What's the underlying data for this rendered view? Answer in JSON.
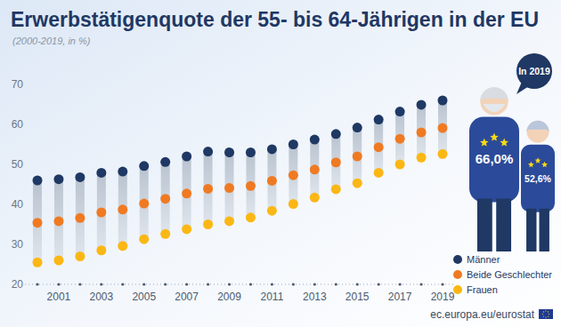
{
  "chart_data": {
    "type": "dumbbell",
    "title": "Erwerbstätigenquote der 55- bis 64-Jährigen in der EU",
    "subtitle": "(2000-2019, in %)",
    "source": "ec.europa.eu/eurostat",
    "categories": [
      null,
      2001,
      null,
      2003,
      null,
      2005,
      null,
      2007,
      null,
      2009,
      null,
      2011,
      null,
      2013,
      null,
      2015,
      null,
      2017,
      null,
      2019
    ],
    "series": [
      {
        "name": "Männer",
        "color": "#1f3864",
        "marker": "circle",
        "values": [
          46.0,
          46.3,
          46.8,
          47.9,
          48.2,
          49.6,
          50.6,
          52.0,
          53.2,
          53.0,
          53.0,
          53.8,
          55.0,
          56.2,
          57.6,
          59.2,
          61.2,
          63.2,
          64.9,
          66.0
        ]
      },
      {
        "name": "Beide Geschlechter",
        "color": "#f07a22",
        "marker": "circle",
        "values": [
          35.4,
          35.8,
          36.6,
          38.0,
          38.7,
          40.2,
          41.4,
          42.7,
          43.9,
          44.1,
          44.6,
          45.9,
          47.3,
          48.7,
          50.5,
          52.0,
          54.3,
          56.4,
          58.0,
          59.1
        ]
      },
      {
        "name": "Frauen",
        "color": "#fbb714",
        "marker": "circle",
        "values": [
          25.5,
          26.0,
          27.0,
          28.5,
          29.6,
          31.3,
          32.6,
          33.8,
          35.0,
          35.8,
          36.7,
          38.4,
          40.1,
          41.7,
          43.8,
          45.3,
          47.9,
          50.0,
          51.7,
          52.6
        ]
      }
    ],
    "callout": {
      "title": "In 2019",
      "values": [
        66.0,
        52.6
      ],
      "value_labels": [
        "66,0%",
        "52,6%"
      ]
    },
    "ylim": [
      20,
      70
    ],
    "yticks": [
      20,
      30,
      40,
      50,
      60,
      70
    ],
    "grid": false,
    "legend": "lower right"
  }
}
